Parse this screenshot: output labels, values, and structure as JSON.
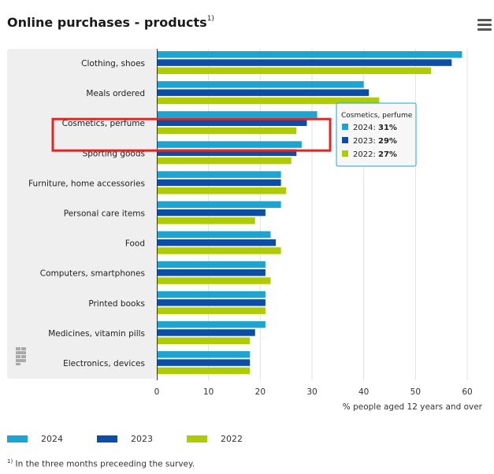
{
  "header": {
    "title": "Online purchases - products",
    "title_footnote_mark": "1)",
    "menu_icon": "hamburger-menu-icon"
  },
  "colors": {
    "panel_bg": "#efefef",
    "series_2024": "#1ea4d0",
    "series_2023": "#0c4ea6",
    "series_2022": "#afcb05",
    "highlight_box": "#d92a2a",
    "tooltip_border": "#1ea4d0"
  },
  "chart_data": {
    "type": "bar",
    "orientation": "horizontal",
    "categories": [
      "Clothing, shoes",
      "Meals ordered",
      "Cosmetics, perfume",
      "Sporting goods",
      "Furniture, home accessories",
      "Personal care items",
      "Food",
      "Computers, smartphones",
      "Printed books",
      "Medicines, vitamin pills",
      "Electronics, devices"
    ],
    "series": [
      {
        "name": "2024",
        "color": "#1ea4d0",
        "values": [
          59,
          40,
          31,
          28,
          24,
          24,
          22,
          21,
          21,
          21,
          18
        ]
      },
      {
        "name": "2023",
        "color": "#0c4ea6",
        "values": [
          57,
          41,
          29,
          27,
          24,
          21,
          23,
          21,
          21,
          19,
          18
        ]
      },
      {
        "name": "2022",
        "color": "#afcb05",
        "values": [
          53,
          43,
          27,
          26,
          25,
          19,
          24,
          22,
          21,
          18,
          18
        ]
      }
    ],
    "xlabel": "% people aged 12 years and over",
    "xlim": [
      0,
      60
    ],
    "xticks": [
      0,
      10,
      20,
      30,
      40,
      50,
      60
    ],
    "grid": true,
    "legend_position": "bottom-left",
    "highlighted_category": "Cosmetics, perfume",
    "tooltip": {
      "title": "Cosmetics, perfume",
      "rows": [
        {
          "label": "2024: ",
          "value": "31%"
        },
        {
          "label": "2023: ",
          "value": "29%"
        },
        {
          "label": "2022: ",
          "value": "27%"
        }
      ]
    }
  },
  "legend": [
    {
      "label": "2024",
      "color": "#1ea4d0"
    },
    {
      "label": "2023",
      "color": "#0c4ea6"
    },
    {
      "label": "2022",
      "color": "#afcb05"
    }
  ],
  "footnote": {
    "mark": "1)",
    "text": " In the three months preceeding the survey."
  }
}
